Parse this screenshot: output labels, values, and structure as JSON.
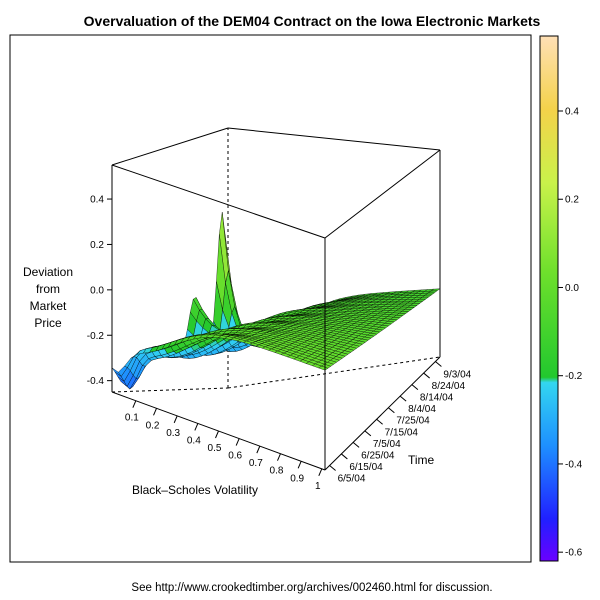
{
  "chart_data": {
    "type": "surface3d",
    "title": "Overvaluation of the DEM04 Contract on the Iowa Electronic Markets",
    "zlabel_lines": [
      "Deviation",
      "from",
      "Market",
      "Price"
    ],
    "xlabel": "Black–Scholes Volatility",
    "ylabel": "Time",
    "x_ticks": [
      "0.1",
      "0.2",
      "0.3",
      "0.4",
      "0.5",
      "0.6",
      "0.7",
      "0.8",
      "0.9",
      "1"
    ],
    "y_ticks": [
      "6/5/04",
      "6/15/04",
      "6/25/04",
      "7/5/04",
      "7/15/04",
      "7/25/04",
      "8/4/04",
      "8/14/04",
      "8/24/04",
      "9/3/04"
    ],
    "z_ticks": [
      "0.4",
      "0.2",
      "0.0",
      "-0.2",
      "-0.4"
    ],
    "zlim": [
      -0.45,
      0.55
    ],
    "colorkey": {
      "range": [
        -0.62,
        0.57
      ],
      "ticks": [
        "0.4",
        "0.2",
        "0.0",
        "-0.2",
        "-0.4",
        "-0.6"
      ]
    }
  },
  "footer": "See http://www.crookedtimber.org/archives/002460.html for discussion."
}
